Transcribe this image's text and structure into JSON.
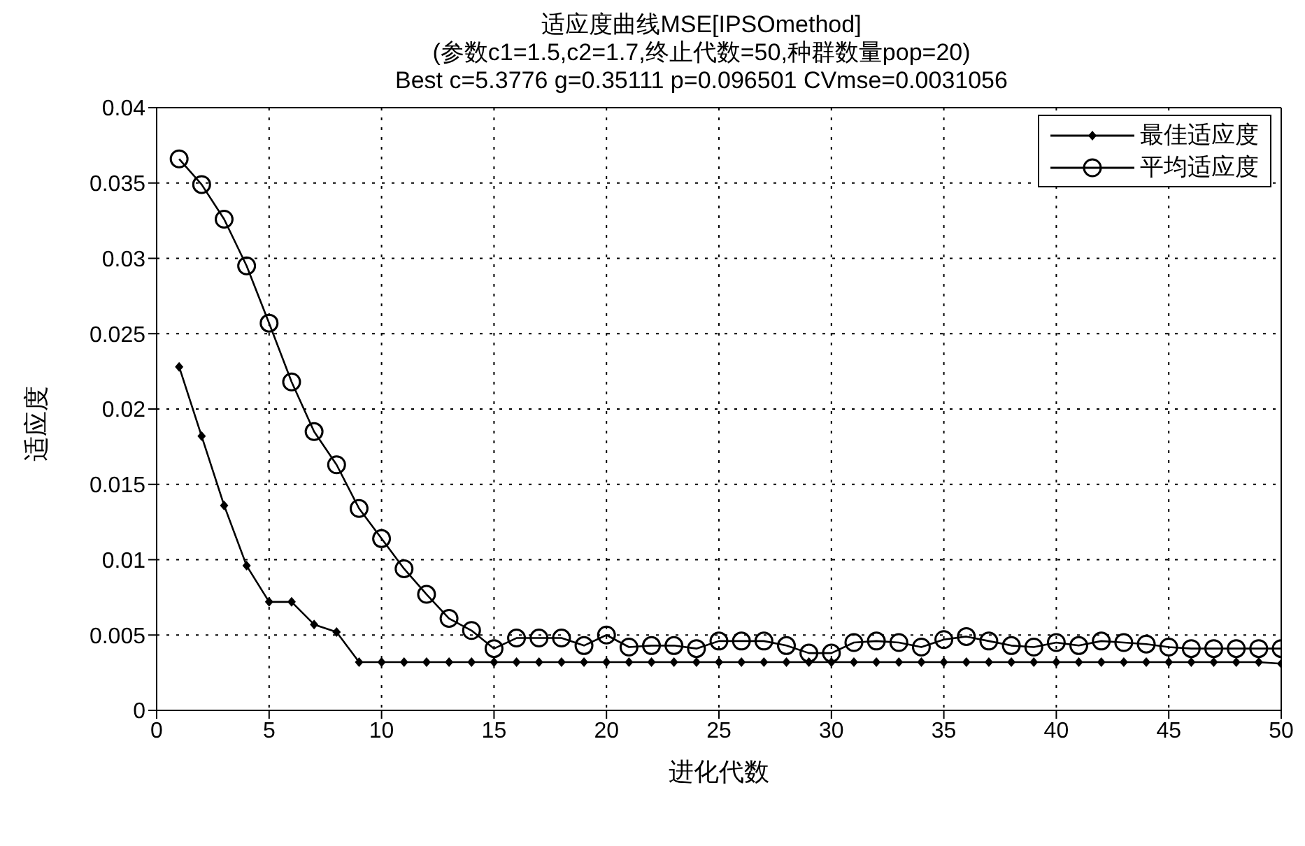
{
  "chart_data": {
    "type": "line",
    "title": "适应度曲线MSE[IPSOmethod]",
    "subtitle": "(参数c1=1.5,c2=1.7,终止代数=50,种群数量pop=20)",
    "annotations": [
      "Best c=5.3776 g=0.35111 p=0.096501 CVmse=0.0031056"
    ],
    "xlabel": "进化代数",
    "ylabel": "适应度",
    "x": [
      1,
      2,
      3,
      4,
      5,
      6,
      7,
      8,
      9,
      10,
      11,
      12,
      13,
      14,
      15,
      16,
      17,
      18,
      19,
      20,
      21,
      22,
      23,
      24,
      25,
      26,
      27,
      28,
      29,
      30,
      31,
      32,
      33,
      34,
      35,
      36,
      37,
      38,
      39,
      40,
      41,
      42,
      43,
      44,
      45,
      46,
      47,
      48,
      49,
      50
    ],
    "series": [
      {
        "name": "最佳适应度",
        "color": "#000000",
        "marker": "diamond",
        "values": [
          0.0228,
          0.0182,
          0.0136,
          0.0096,
          0.0072,
          0.0072,
          0.0057,
          0.0052,
          0.0032,
          0.0032,
          0.0032,
          0.0032,
          0.0032,
          0.0032,
          0.0032,
          0.0032,
          0.0032,
          0.0032,
          0.0032,
          0.0032,
          0.0032,
          0.0032,
          0.0032,
          0.0032,
          0.0032,
          0.0032,
          0.0032,
          0.0032,
          0.0032,
          0.0032,
          0.0032,
          0.0032,
          0.0032,
          0.0032,
          0.0032,
          0.0032,
          0.0032,
          0.0032,
          0.0032,
          0.0032,
          0.0032,
          0.0032,
          0.0032,
          0.0032,
          0.0032,
          0.0032,
          0.0032,
          0.0032,
          0.0032,
          0.0031
        ]
      },
      {
        "name": "平均适应度",
        "color": "#000000",
        "marker": "circle",
        "values": [
          0.0366,
          0.0349,
          0.0326,
          0.0295,
          0.0257,
          0.0218,
          0.0185,
          0.0163,
          0.0134,
          0.0114,
          0.0094,
          0.0077,
          0.0061,
          0.0053,
          0.0041,
          0.0048,
          0.0048,
          0.0048,
          0.0043,
          0.005,
          0.0042,
          0.0043,
          0.0043,
          0.0041,
          0.0046,
          0.0046,
          0.0046,
          0.0043,
          0.0038,
          0.0038,
          0.0045,
          0.0046,
          0.0045,
          0.0042,
          0.0047,
          0.0049,
          0.0046,
          0.0043,
          0.0042,
          0.0045,
          0.0043,
          0.0046,
          0.0045,
          0.0044,
          0.0042,
          0.0041,
          0.0041,
          0.0041,
          0.0041,
          0.0041
        ]
      }
    ],
    "xlim": [
      0,
      50
    ],
    "xticks": [
      0,
      5,
      10,
      15,
      20,
      25,
      30,
      35,
      40,
      45,
      50
    ],
    "ylim": [
      0,
      0.04
    ],
    "yticks": [
      0,
      0.005,
      0.01,
      0.015,
      0.02,
      0.025,
      0.03,
      0.035,
      0.04
    ],
    "grid": true,
    "legend": "top right",
    "line_style": "solid"
  }
}
